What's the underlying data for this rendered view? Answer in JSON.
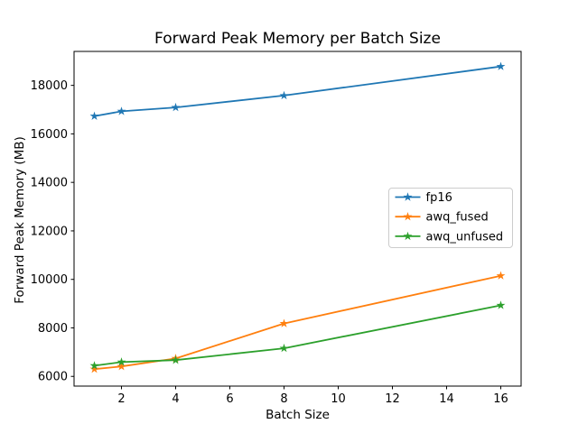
{
  "chart_data": {
    "type": "line",
    "title": "Forward Peak Memory per Batch Size",
    "xlabel": "Batch Size",
    "ylabel": "Forward Peak Memory (MB)",
    "x": [
      1,
      2,
      4,
      8,
      16
    ],
    "series": [
      {
        "name": "fp16",
        "color": "#1f77b4",
        "values": [
          16730,
          16930,
          17090,
          17580,
          18780
        ]
      },
      {
        "name": "awq_fused",
        "color": "#ff7f0e",
        "values": [
          6300,
          6410,
          6740,
          8180,
          10150
        ]
      },
      {
        "name": "awq_unfused",
        "color": "#2ca02c",
        "values": [
          6440,
          6590,
          6670,
          7160,
          8930
        ]
      }
    ],
    "xlim": [
      0.25,
      16.75
    ],
    "ylim": [
      5600,
      19400
    ],
    "xticks": [
      2,
      4,
      6,
      8,
      10,
      12,
      14,
      16
    ],
    "yticks": [
      6000,
      8000,
      10000,
      12000,
      14000,
      16000,
      18000
    ],
    "marker": "star",
    "grid": false,
    "legend_position": "center-right",
    "frame_color": "#000000",
    "legend_border_color": "#cccccc",
    "background": "#ffffff"
  }
}
